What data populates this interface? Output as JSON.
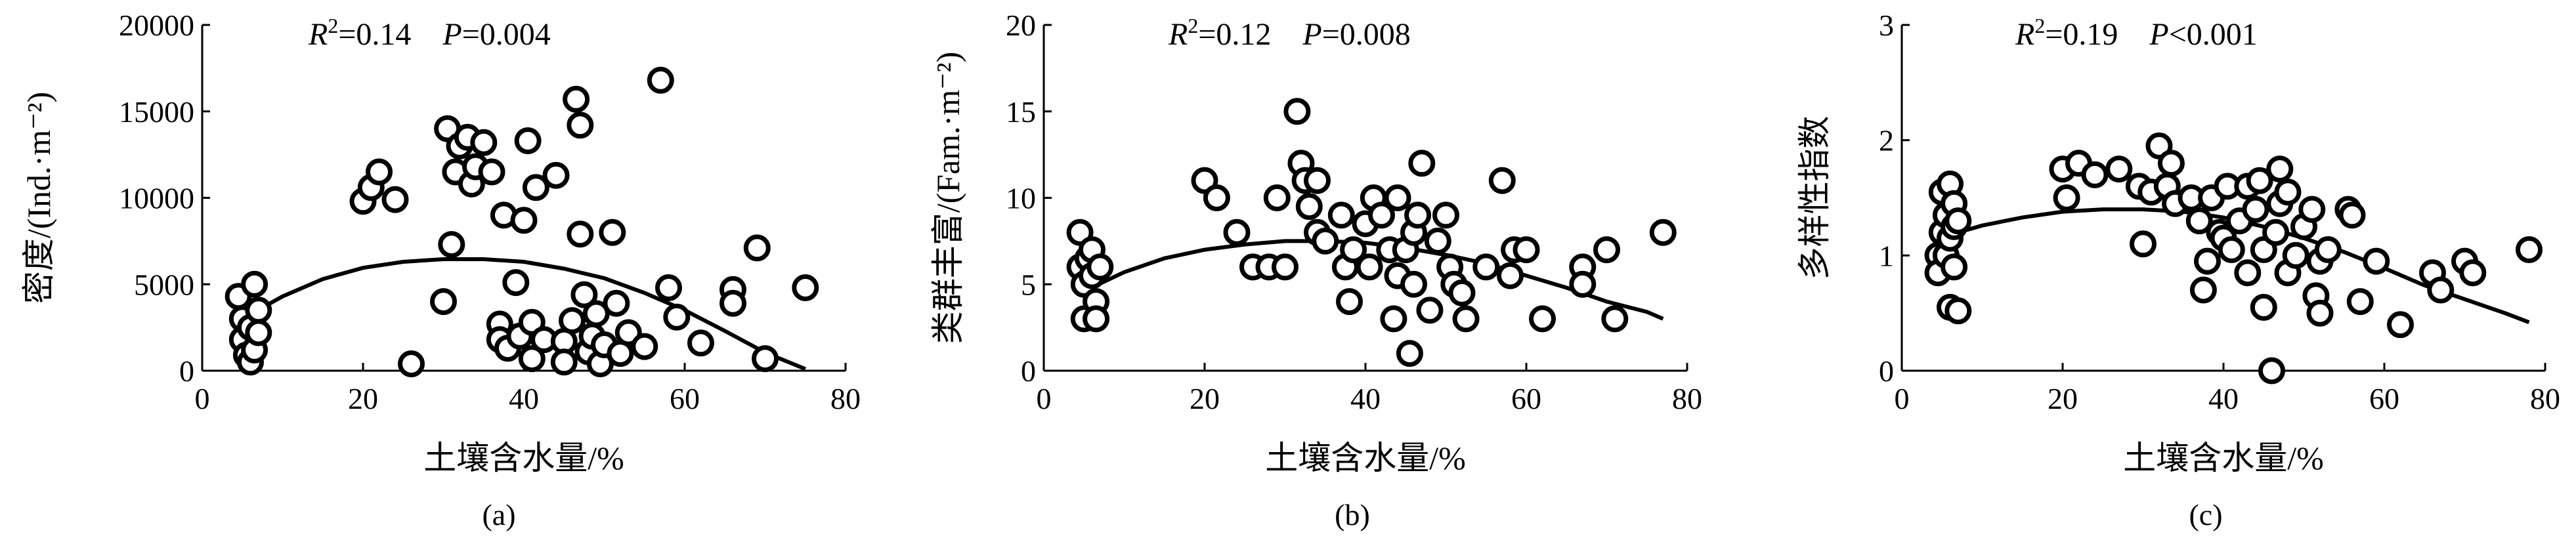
{
  "chart_data": [
    {
      "type": "scatter",
      "panel": "(a)",
      "stats": {
        "r2": "R²=0.14",
        "r2_sym": "R",
        "r2_sup": "2",
        "r2_val": "=0.14",
        "p_sym": "P",
        "p_val": "=0.004"
      },
      "ylabel": "密度/(Ind.·m⁻²)",
      "xlabel": "土壤含水量/%",
      "xlim": [
        0,
        80
      ],
      "ylim": [
        0,
        20000
      ],
      "xticks": [
        0,
        20,
        40,
        60,
        80
      ],
      "yticks": [
        0,
        5000,
        10000,
        15000,
        20000
      ],
      "fit": {
        "type": "quadratic",
        "x": [
          5,
          10,
          15,
          20,
          25,
          30,
          35,
          40,
          45,
          50,
          55,
          60,
          65,
          70,
          75
        ],
        "y": [
          3000,
          4300,
          5300,
          5950,
          6300,
          6450,
          6450,
          6300,
          5900,
          5350,
          4500,
          3500,
          2300,
          1050,
          100
        ]
      },
      "points": [
        [
          4.5,
          4300
        ],
        [
          5,
          3000
        ],
        [
          5,
          1800
        ],
        [
          5.5,
          900
        ],
        [
          6,
          500
        ],
        [
          6,
          2500
        ],
        [
          6.5,
          5000
        ],
        [
          6.5,
          1200
        ],
        [
          7,
          3500
        ],
        [
          7,
          2200
        ],
        [
          20,
          9800
        ],
        [
          21,
          10600
        ],
        [
          22,
          11500
        ],
        [
          24,
          9900
        ],
        [
          26,
          400
        ],
        [
          30,
          4000
        ],
        [
          30.5,
          14000
        ],
        [
          31,
          7300
        ],
        [
          31.5,
          11500
        ],
        [
          32,
          13000
        ],
        [
          33,
          13500
        ],
        [
          33.5,
          10800
        ],
        [
          34,
          11800
        ],
        [
          35,
          13200
        ],
        [
          36,
          11500
        ],
        [
          37,
          2700
        ],
        [
          37,
          1800
        ],
        [
          37.5,
          9000
        ],
        [
          38,
          1300
        ],
        [
          39,
          5100
        ],
        [
          39.5,
          2000
        ],
        [
          40,
          8700
        ],
        [
          40.5,
          13300
        ],
        [
          41,
          2800
        ],
        [
          41,
          700
        ],
        [
          41.5,
          10600
        ],
        [
          42.5,
          1800
        ],
        [
          44,
          11300
        ],
        [
          45,
          1700
        ],
        [
          45,
          500
        ],
        [
          46,
          2900
        ],
        [
          46.5,
          15700
        ],
        [
          47,
          14200
        ],
        [
          47.5,
          4400
        ],
        [
          47,
          7900
        ],
        [
          48,
          1100
        ],
        [
          48.5,
          2000
        ],
        [
          49,
          3300
        ],
        [
          49.5,
          400
        ],
        [
          50,
          1500
        ],
        [
          51,
          8000
        ],
        [
          51.5,
          3900
        ],
        [
          52,
          1000
        ],
        [
          53,
          2200
        ],
        [
          55,
          1400
        ],
        [
          57,
          16800
        ],
        [
          58,
          4800
        ],
        [
          59,
          3100
        ],
        [
          62,
          1600
        ],
        [
          66,
          4700
        ],
        [
          66,
          3900
        ],
        [
          69,
          7100
        ],
        [
          70,
          700
        ],
        [
          75,
          4800
        ]
      ]
    },
    {
      "type": "scatter",
      "panel": "(b)",
      "stats": {
        "r2_sym": "R",
        "r2_sup": "2",
        "r2_val": "=0.12",
        "p_sym": "P",
        "p_val": "=0.008"
      },
      "ylabel": "类群丰富/(Fam.·m⁻²)",
      "xlabel": "土壤含水量/%",
      "xlim": [
        0,
        80
      ],
      "ylim": [
        0,
        20
      ],
      "xticks": [
        0,
        20,
        40,
        60,
        80
      ],
      "yticks": [
        0,
        5,
        10,
        15,
        20
      ],
      "fit": {
        "type": "quadratic",
        "x": [
          5,
          10,
          15,
          20,
          25,
          30,
          35,
          40,
          45,
          50,
          55,
          60,
          65,
          70,
          75,
          77
        ],
        "y": [
          4.6,
          5.7,
          6.5,
          7.0,
          7.3,
          7.5,
          7.5,
          7.4,
          7.1,
          6.7,
          6.2,
          5.5,
          4.8,
          4.0,
          3.4,
          3.0
        ]
      },
      "points": [
        [
          4.5,
          8
        ],
        [
          4.5,
          6
        ],
        [
          5,
          5
        ],
        [
          5,
          3
        ],
        [
          5.5,
          6.5
        ],
        [
          6,
          7
        ],
        [
          6,
          5.5
        ],
        [
          6.5,
          4
        ],
        [
          6.5,
          3
        ],
        [
          7,
          6
        ],
        [
          20,
          11
        ],
        [
          21.5,
          10
        ],
        [
          24,
          8
        ],
        [
          26,
          6
        ],
        [
          28,
          6
        ],
        [
          29,
          10
        ],
        [
          30,
          6
        ],
        [
          31.5,
          15
        ],
        [
          32,
          12
        ],
        [
          32.5,
          11
        ],
        [
          33,
          9.5
        ],
        [
          34,
          11
        ],
        [
          34,
          8
        ],
        [
          35,
          7.5
        ],
        [
          37,
          9
        ],
        [
          37.5,
          6
        ],
        [
          38,
          4
        ],
        [
          38.5,
          7
        ],
        [
          40,
          8.5
        ],
        [
          40.5,
          6
        ],
        [
          41,
          10
        ],
        [
          42,
          9
        ],
        [
          43,
          7
        ],
        [
          43.5,
          3
        ],
        [
          44,
          5.5
        ],
        [
          44,
          10
        ],
        [
          45,
          7
        ],
        [
          45.5,
          1
        ],
        [
          46,
          5
        ],
        [
          46,
          8
        ],
        [
          46.5,
          9
        ],
        [
          47,
          12
        ],
        [
          48,
          3.5
        ],
        [
          49,
          7.5
        ],
        [
          50,
          9
        ],
        [
          50.5,
          6
        ],
        [
          51,
          5
        ],
        [
          52,
          4.5
        ],
        [
          52.5,
          3
        ],
        [
          55,
          6
        ],
        [
          57,
          11
        ],
        [
          58,
          5.5
        ],
        [
          58.5,
          7
        ],
        [
          60,
          7
        ],
        [
          62,
          3
        ],
        [
          67,
          6
        ],
        [
          67,
          5
        ],
        [
          70,
          7
        ],
        [
          71,
          3
        ],
        [
          77,
          8
        ]
      ]
    },
    {
      "type": "scatter",
      "panel": "(c)",
      "stats": {
        "r2_sym": "R",
        "r2_sup": "2",
        "r2_val": "=0.19",
        "p_sym": "P",
        "p_val": "<0.001"
      },
      "ylabel": "多样性指数",
      "xlabel": "土壤含水量/%",
      "xlim": [
        0,
        80
      ],
      "ylim": [
        0,
        3
      ],
      "xticks": [
        0,
        20,
        40,
        60,
        80
      ],
      "yticks": [
        0,
        1,
        2,
        3
      ],
      "fit": {
        "type": "quadratic",
        "x": [
          5,
          10,
          15,
          20,
          25,
          30,
          35,
          40,
          45,
          50,
          55,
          60,
          65,
          70,
          75,
          78
        ],
        "y": [
          1.16,
          1.26,
          1.33,
          1.38,
          1.4,
          1.4,
          1.38,
          1.33,
          1.25,
          1.15,
          1.03,
          0.89,
          0.74,
          0.62,
          0.5,
          0.42
        ]
      },
      "points": [
        [
          4.5,
          1.0
        ],
        [
          4.5,
          0.85
        ],
        [
          5,
          1.2
        ],
        [
          5,
          1.55
        ],
        [
          5.5,
          1.35
        ],
        [
          5.5,
          1.0
        ],
        [
          6,
          1.62
        ],
        [
          6,
          1.15
        ],
        [
          6,
          0.55
        ],
        [
          6.5,
          1.45
        ],
        [
          6.5,
          1.25
        ],
        [
          6.5,
          0.9
        ],
        [
          7,
          1.3
        ],
        [
          7,
          0.52
        ],
        [
          20,
          1.75
        ],
        [
          20.5,
          1.5
        ],
        [
          22,
          1.8
        ],
        [
          24,
          1.7
        ],
        [
          27,
          1.75
        ],
        [
          29.5,
          1.6
        ],
        [
          30,
          1.1
        ],
        [
          31,
          1.55
        ],
        [
          32,
          1.95
        ],
        [
          33,
          1.6
        ],
        [
          33.5,
          1.8
        ],
        [
          34,
          1.45
        ],
        [
          36,
          1.5
        ],
        [
          37,
          1.3
        ],
        [
          37.5,
          0.7
        ],
        [
          38,
          0.95
        ],
        [
          38.5,
          1.5
        ],
        [
          39.5,
          1.2
        ],
        [
          40,
          1.15
        ],
        [
          40.5,
          1.6
        ],
        [
          41,
          1.05
        ],
        [
          42,
          1.3
        ],
        [
          43,
          1.6
        ],
        [
          43,
          0.85
        ],
        [
          44,
          1.4
        ],
        [
          44.5,
          1.65
        ],
        [
          45,
          0.55
        ],
        [
          45,
          1.05
        ],
        [
          46,
          0.0
        ],
        [
          46.5,
          1.2
        ],
        [
          47,
          1.75
        ],
        [
          47,
          1.45
        ],
        [
          48,
          1.55
        ],
        [
          48,
          0.85
        ],
        [
          49,
          1.0
        ],
        [
          50,
          1.25
        ],
        [
          51,
          1.4
        ],
        [
          51.5,
          0.65
        ],
        [
          52,
          0.5
        ],
        [
          52,
          0.95
        ],
        [
          53,
          1.05
        ],
        [
          55.5,
          1.4
        ],
        [
          56,
          1.35
        ],
        [
          57,
          0.6
        ],
        [
          59,
          0.95
        ],
        [
          62,
          0.4
        ],
        [
          66,
          0.85
        ],
        [
          67,
          0.7
        ],
        [
          70,
          0.95
        ],
        [
          71,
          0.85
        ],
        [
          78,
          1.05
        ]
      ]
    }
  ],
  "colors": {
    "marker_stroke": "#000000",
    "marker_fill": "#ffffff",
    "axis": "#000000"
  }
}
